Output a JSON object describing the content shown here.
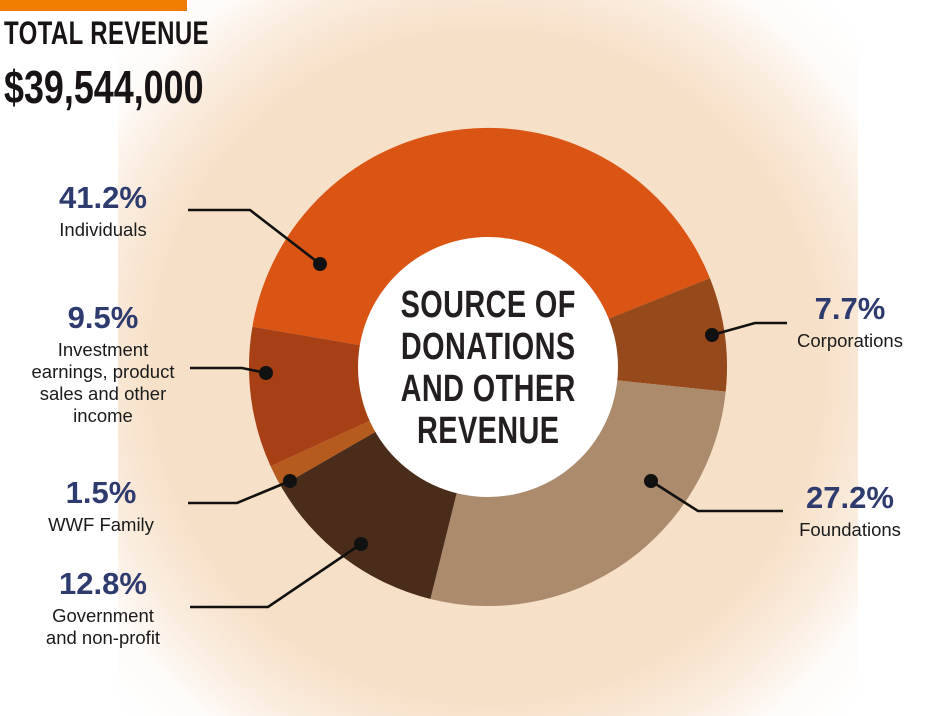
{
  "header": {
    "title": "TOTAL REVENUE",
    "amount": "$39,544,000",
    "accent_color": "#EE7D00"
  },
  "chart_data": {
    "type": "pie",
    "variant": "donut",
    "title": "SOURCE OF DONATIONS AND OTHER REVENUE",
    "center_title_multiline": "SOURCE OF\nDONATIONS\nAND OTHER\nREVENUE",
    "total_label": "TOTAL REVENUE",
    "total_value": "$39,544,000",
    "start_angle_deg": -80.3,
    "legend_position": "callout-labels-with-leader-lines",
    "segments": [
      {
        "label": "Individuals",
        "value": 41.2,
        "pct_label": "41.2%",
        "color": "#DA5413"
      },
      {
        "label": "Corporations",
        "value": 7.7,
        "pct_label": "7.7%",
        "color": "#96491A"
      },
      {
        "label": "Foundations",
        "value": 27.2,
        "pct_label": "27.2%",
        "color": "#AC8A6C"
      },
      {
        "label": "Government and non-profit",
        "value": 12.8,
        "pct_label": "12.8%",
        "color": "#4A2C1A"
      },
      {
        "label": "WWF Family",
        "value": 1.5,
        "pct_label": "1.5%",
        "color": "#B55B1E"
      },
      {
        "label": "Investment earnings, product sales and other income",
        "value": 9.5,
        "pct_label": "9.5%",
        "color": "#A84016"
      }
    ],
    "colors": {
      "pct_text": "#2E3B6E",
      "label_text": "#1B1B1B",
      "center_text": "#231F20",
      "leader_line": "#111111",
      "hole": "#FFFFFF",
      "glow": "#F7E0C8"
    }
  }
}
